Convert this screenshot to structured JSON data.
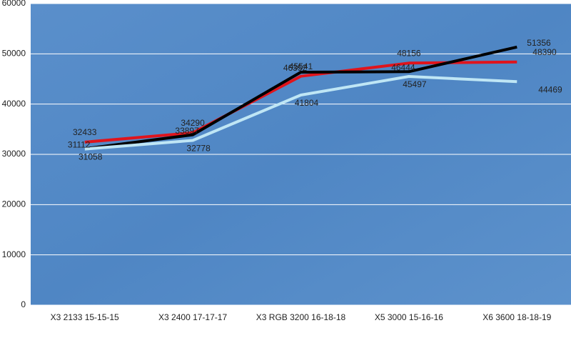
{
  "chart_data": {
    "type": "line",
    "categories": [
      "X3 2133 15-15-15",
      "X3 2400 17-17-17",
      "X3 RGB 3200 16-18-18",
      "X5 3000 15-16-16",
      "X6 3600 18-18-19"
    ],
    "series": [
      {
        "color": "#e0141c",
        "values": [
          32433,
          34290,
          45541,
          48156,
          48390
        ]
      },
      {
        "color": "#000000",
        "values": [
          31112,
          33897,
          46352,
          46444,
          51356
        ]
      },
      {
        "color": "#bfe6f5",
        "values": [
          31058,
          32778,
          41804,
          45497,
          44469
        ]
      }
    ],
    "ylim": [
      0,
      60000
    ],
    "yticks": [
      0,
      10000,
      20000,
      30000,
      40000,
      50000,
      60000
    ],
    "grid": true
  }
}
